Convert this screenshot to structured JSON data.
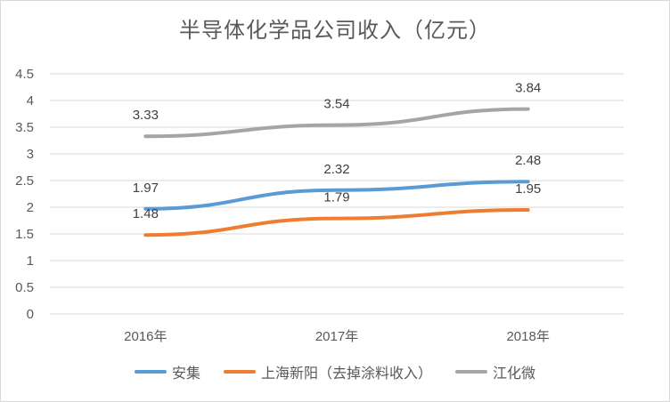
{
  "chart_data": {
    "type": "line",
    "title": "半导体化学品公司收入（亿元）",
    "categories": [
      "2016年",
      "2017年",
      "2018年"
    ],
    "ylim": [
      0,
      4.5
    ],
    "yticks": [
      "0",
      "0.5",
      "1",
      "1.5",
      "2",
      "2.5",
      "3",
      "3.5",
      "4",
      "4.5"
    ],
    "grid": true,
    "legend_position": "bottom",
    "series": [
      {
        "name": "安集",
        "values": [
          1.97,
          2.32,
          2.48
        ],
        "labels": [
          "1.97",
          "2.32",
          "2.48"
        ],
        "color": "#5b9bd5"
      },
      {
        "name": "上海新阳（去掉涂料收入）",
        "values": [
          1.48,
          1.79,
          1.95
        ],
        "labels": [
          "1.48",
          "1.79",
          "1.95"
        ],
        "color": "#ed7d31"
      },
      {
        "name": "江化微",
        "values": [
          3.33,
          3.54,
          3.84
        ],
        "labels": [
          "3.33",
          "3.54",
          "3.84"
        ],
        "color": "#a5a5a5"
      }
    ]
  }
}
